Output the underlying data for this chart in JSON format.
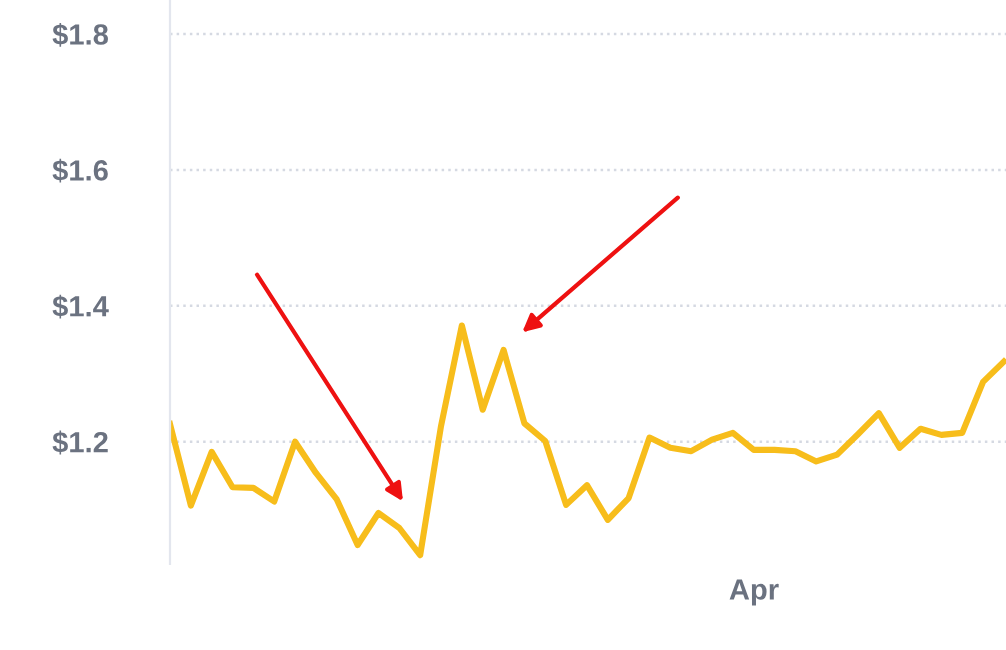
{
  "chart_data": {
    "type": "line",
    "categories": [
      null,
      null,
      null,
      null,
      null,
      null,
      null,
      null,
      null,
      null,
      null,
      null,
      null,
      null,
      null,
      null,
      null,
      null,
      null,
      null,
      null,
      null,
      null,
      null,
      null,
      null,
      null,
      null,
      null,
      null,
      null,
      null,
      null,
      null,
      null,
      null,
      null,
      null,
      null,
      null,
      null
    ],
    "series": [
      {
        "color": "#f7bd1b",
        "values": [
          1.226,
          1.106,
          1.185,
          1.133,
          1.132,
          1.112,
          1.2,
          1.154,
          1.115,
          1.048,
          1.095,
          1.073,
          1.033,
          1.223,
          1.371,
          1.247,
          1.335,
          1.227,
          1.201,
          1.107,
          1.136,
          1.085,
          1.117,
          1.206,
          1.191,
          1.186,
          1.203,
          1.213,
          1.188,
          1.188,
          1.186,
          1.171,
          1.181,
          1.211,
          1.242,
          1.191,
          1.219,
          1.21,
          1.213,
          1.288,
          1.318
        ]
      }
    ],
    "annotations": [
      "Apr"
    ],
    "ylim": [
      1.02,
      1.85
    ],
    "yticks": [
      {
        "value": 1.2,
        "label": "$1.2"
      },
      {
        "value": 1.4,
        "label": "$1.4"
      },
      {
        "value": 1.6,
        "label": "$1.6"
      },
      {
        "value": 1.8,
        "label": "$1.8"
      }
    ],
    "grid": "y",
    "marker": "none",
    "line_style": "solid",
    "legend": false
  }
}
